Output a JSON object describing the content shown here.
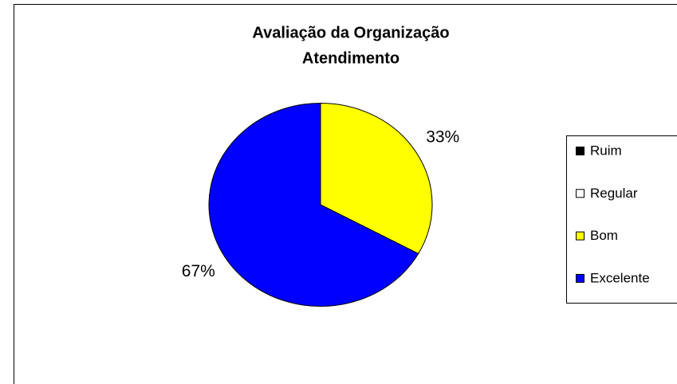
{
  "chart_data": {
    "type": "pie",
    "title": "Avaliação da Organização",
    "subtitle": "Atendimento",
    "categories": [
      "Ruim",
      "Regular",
      "Bom",
      "Excelente"
    ],
    "values": [
      0,
      0,
      33,
      67
    ],
    "value_labels": [
      null,
      null,
      "33%",
      "67%"
    ],
    "colors": [
      "#000000",
      "#ffffff",
      "#ffff00",
      "#0000ff"
    ],
    "legend": "right"
  }
}
